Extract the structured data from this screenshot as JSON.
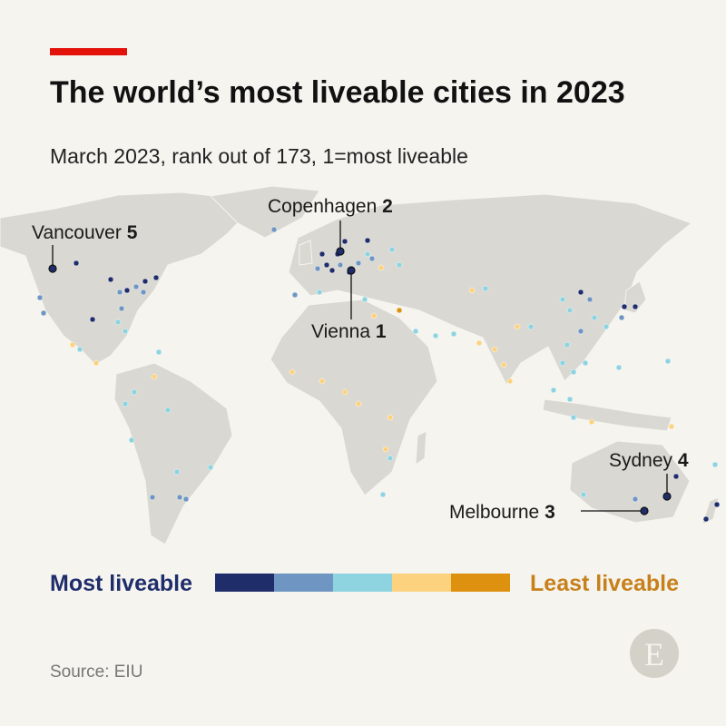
{
  "header": {
    "title": "The world’s most liveable cities in 2023",
    "subtitle": "March 2023, rank out of 173, 1=most liveable"
  },
  "cities": [
    {
      "name": "Copenhagen",
      "rank": 2
    },
    {
      "name": "Vancouver",
      "rank": 5
    },
    {
      "name": "Vienna",
      "rank": 1
    },
    {
      "name": "Sydney",
      "rank": 4
    },
    {
      "name": "Melbourne",
      "rank": 3
    }
  ],
  "legend": {
    "low_label": "Most liveable",
    "high_label": "Least liveable",
    "colors": [
      "#1f2d6b",
      "#6f96c2",
      "#8dd3e0",
      "#fcd27f",
      "#de900f"
    ]
  },
  "source": "Source: EIU",
  "logo": "E"
}
